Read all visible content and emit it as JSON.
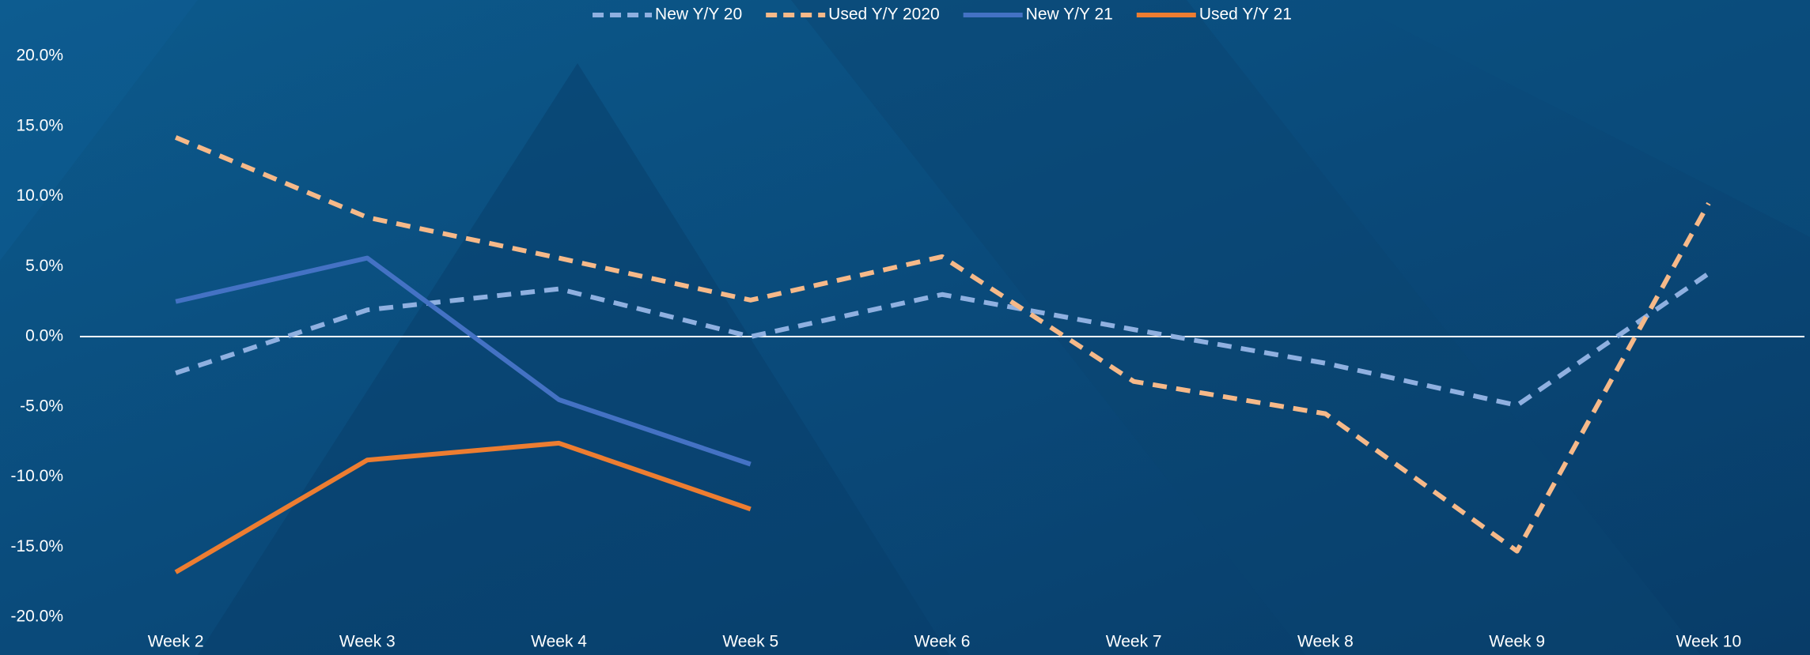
{
  "chart_data": {
    "type": "line",
    "categories": [
      "Week 2",
      "Week 3",
      "Week 4",
      "Week 5",
      "Week 6",
      "Week 7",
      "Week 8",
      "Week 9",
      "Week 10"
    ],
    "series": [
      {
        "name": "New Y/Y 20",
        "color": "#8fb0e0",
        "dashed": true,
        "values": [
          -2.6,
          1.9,
          3.4,
          0.0,
          3.0,
          0.5,
          -1.9,
          -4.9,
          4.5
        ]
      },
      {
        "name": "Used Y/Y 2020",
        "color": "#f6b989",
        "dashed": true,
        "values": [
          14.2,
          8.5,
          5.6,
          2.6,
          5.7,
          -3.2,
          -5.5,
          -15.3,
          9.5
        ]
      },
      {
        "name": "New Y/Y 21",
        "color": "#4472c4",
        "dashed": false,
        "values": [
          2.5,
          5.6,
          -4.5,
          -9.1,
          null,
          null,
          null,
          null,
          null
        ]
      },
      {
        "name": "Used Y/Y 21",
        "color": "#ed7d31",
        "dashed": false,
        "values": [
          -16.8,
          -8.8,
          -7.6,
          -12.3,
          null,
          null,
          null,
          null,
          null
        ]
      }
    ],
    "ylim": [
      -20,
      20
    ],
    "yticks": [
      {
        "value": -20,
        "label": "-20.0%"
      },
      {
        "value": -15,
        "label": "-15.0%"
      },
      {
        "value": -10,
        "label": "-10.0%"
      },
      {
        "value": -5,
        "label": "-5.0%"
      },
      {
        "value": 0,
        "label": "0.0%"
      },
      {
        "value": 5,
        "label": "5.0%"
      },
      {
        "value": 10,
        "label": "10.0%"
      },
      {
        "value": 15,
        "label": "15.0%"
      },
      {
        "value": 20,
        "label": "20.0%"
      }
    ],
    "legend": "top"
  }
}
